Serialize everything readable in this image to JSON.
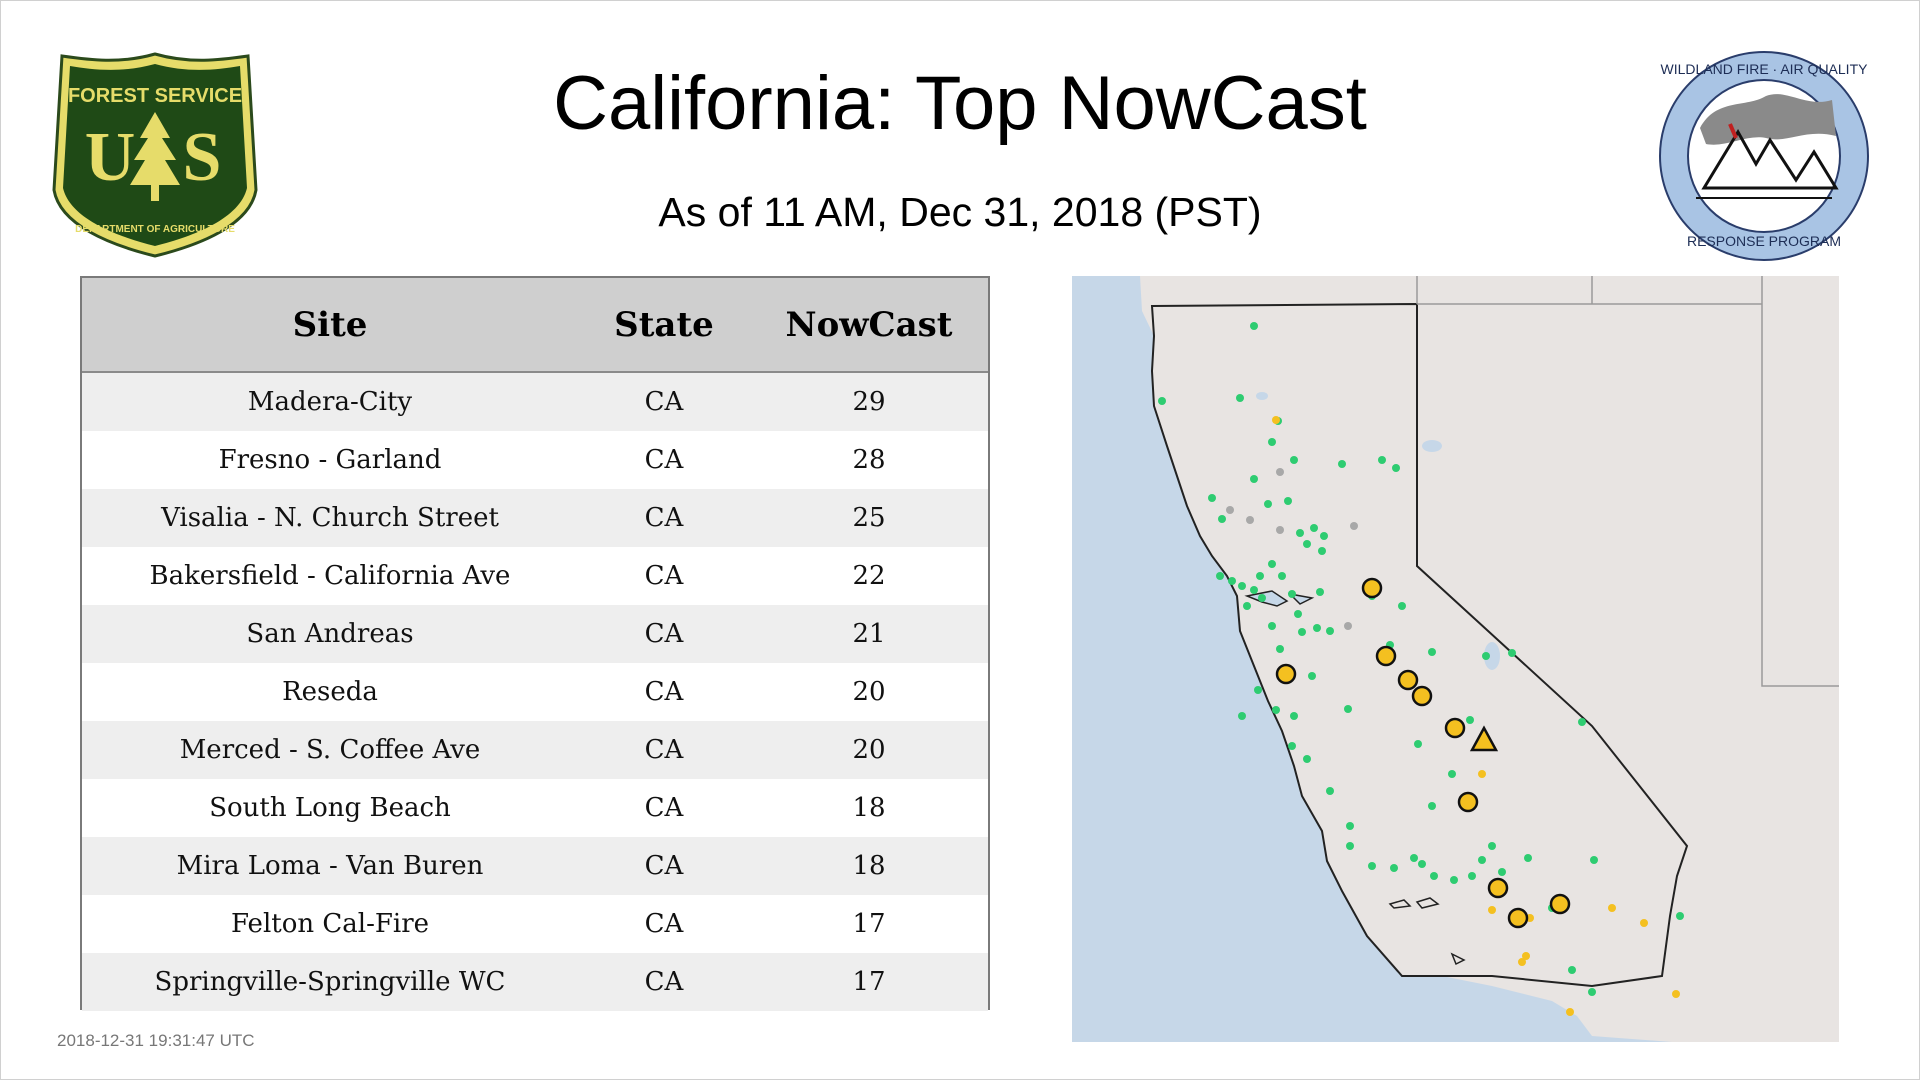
{
  "header": {
    "title": "California: Top NowCast",
    "subtitle": "As of 11 AM, Dec 31, 2018 (PST)"
  },
  "logos": {
    "left": {
      "top_text": "FOREST SERVICE",
      "middle_text": "U S",
      "bottom_text": "DEPARTMENT OF AGRICULTURE",
      "icon": "pine-tree-shield-icon"
    },
    "right": {
      "top_text": "WILDLAND FIRE · AIR QUALITY",
      "bottom_text": "RESPONSE PROGRAM",
      "icon": "mountain-smoke-icon"
    }
  },
  "table": {
    "headers": {
      "site": "Site",
      "state": "State",
      "nowcast": "NowCast"
    },
    "rows": [
      {
        "site": "Madera-City",
        "state": "CA",
        "nowcast": "29"
      },
      {
        "site": "Fresno - Garland",
        "state": "CA",
        "nowcast": "28"
      },
      {
        "site": "Visalia - N. Church Street",
        "state": "CA",
        "nowcast": "25"
      },
      {
        "site": "Bakersfield - California Ave",
        "state": "CA",
        "nowcast": "22"
      },
      {
        "site": "San Andreas",
        "state": "CA",
        "nowcast": "21"
      },
      {
        "site": "Reseda",
        "state": "CA",
        "nowcast": "20"
      },
      {
        "site": "Merced - S. Coffee Ave",
        "state": "CA",
        "nowcast": "20"
      },
      {
        "site": "South Long Beach",
        "state": "CA",
        "nowcast": "18"
      },
      {
        "site": "Mira Loma - Van Buren",
        "state": "CA",
        "nowcast": "18"
      },
      {
        "site": "Felton Cal-Fire",
        "state": "CA",
        "nowcast": "17"
      },
      {
        "site": "Springville-Springville WC",
        "state": "CA",
        "nowcast": "17"
      }
    ]
  },
  "timestamp": "2018-12-31 19:31:47 UTC",
  "map": {
    "colors": {
      "ocean": "#c6d7e8",
      "land": "#e8e4e2",
      "green": "#2ecc71",
      "yellow": "#f4c020",
      "gray": "#a8a8a8",
      "top_site": "#f4c020"
    }
  }
}
